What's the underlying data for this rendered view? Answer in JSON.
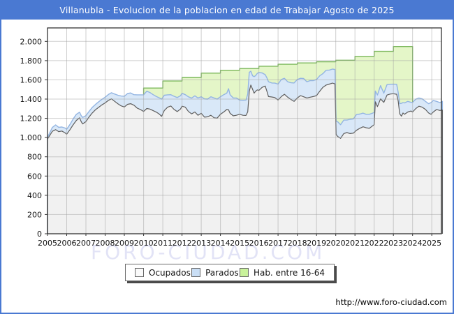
{
  "title": "Villanubla - Evolucion de la poblacion en edad de Trabajar Agosto de 2025",
  "watermark": "FORO-CIUDAD.COM",
  "footer_url": "http://www.foro-ciudad.com",
  "colors": {
    "theme_blue": "#4a79d2",
    "plot_border": "#222222",
    "grid": "rgba(160,160,160,0.5)",
    "axis_text": "#111111",
    "ocupados_line": "#5e5e5e",
    "ocupados_fill": "#f1f1f1",
    "parados_line": "#93b5e2",
    "parados_fill": "#d9e8f8",
    "hab_line": "#7cb85c",
    "hab_fill": "#e4f6c8"
  },
  "legend": [
    {
      "id": "ocupados",
      "label": "Ocupados",
      "swatch": "#fafafa"
    },
    {
      "id": "parados",
      "label": "Parados",
      "swatch": "#c9def5"
    },
    {
      "id": "hab",
      "label": "Hab. entre 16-64",
      "swatch": "#c9f29b"
    }
  ],
  "chart_data": {
    "type": "area",
    "title": "Villanubla - Evolucion de la poblacion en edad de Trabajar Agosto de 2025",
    "xlabel": "",
    "ylabel": "",
    "grid": true,
    "legend_position": "bottom",
    "xlim": [
      2005,
      2025.5
    ],
    "ylim": [
      0,
      2140
    ],
    "x_ticks": [
      2005,
      2006,
      2007,
      2008,
      2009,
      2010,
      2011,
      2012,
      2013,
      2014,
      2015,
      2016,
      2017,
      2018,
      2019,
      2020,
      2021,
      2022,
      2023,
      2024,
      2025
    ],
    "y_ticks": [
      0,
      200,
      400,
      600,
      800,
      1000,
      1200,
      1400,
      1600,
      1800,
      2000
    ],
    "y_tick_labels": [
      "0",
      "200",
      "400",
      "600",
      "800",
      "1.000",
      "1.200",
      "1.400",
      "1.600",
      "1.800",
      "2.000"
    ],
    "x": [
      2005.0,
      2005.08,
      2005.25,
      2005.42,
      2005.58,
      2005.75,
      2005.92,
      2006.0,
      2006.17,
      2006.33,
      2006.5,
      2006.67,
      2006.75,
      2006.83,
      2007.0,
      2007.17,
      2007.33,
      2007.5,
      2007.67,
      2007.83,
      2008.0,
      2008.17,
      2008.33,
      2008.5,
      2008.67,
      2008.83,
      2009.0,
      2009.17,
      2009.33,
      2009.5,
      2009.67,
      2009.83,
      2010.0,
      2010.17,
      2010.33,
      2010.5,
      2010.67,
      2010.83,
      2010.94,
      2011.08,
      2011.25,
      2011.42,
      2011.58,
      2011.75,
      2011.92,
      2012.0,
      2012.17,
      2012.33,
      2012.5,
      2012.67,
      2012.83,
      2013.0,
      2013.17,
      2013.33,
      2013.5,
      2013.67,
      2013.83,
      2014.0,
      2014.17,
      2014.33,
      2014.42,
      2014.5,
      2014.67,
      2014.83,
      2015.0,
      2015.17,
      2015.33,
      2015.42,
      2015.5,
      2015.58,
      2015.67,
      2015.75,
      2015.83,
      2015.92,
      2016.0,
      2016.17,
      2016.33,
      2016.42,
      2016.5,
      2016.67,
      2016.83,
      2017.0,
      2017.17,
      2017.33,
      2017.5,
      2017.67,
      2017.83,
      2018.0,
      2018.17,
      2018.33,
      2018.5,
      2018.67,
      2018.83,
      2019.0,
      2019.17,
      2019.33,
      2019.5,
      2019.67,
      2019.83,
      2019.96,
      2020.02,
      2020.1,
      2020.25,
      2020.42,
      2020.58,
      2020.75,
      2020.92,
      2021.08,
      2021.25,
      2021.42,
      2021.58,
      2021.75,
      2021.92,
      2022.0,
      2022.06,
      2022.17,
      2022.33,
      2022.5,
      2022.67,
      2022.83,
      2023.0,
      2023.17,
      2023.25,
      2023.33,
      2023.42,
      2023.5,
      2023.58,
      2023.75,
      2023.92,
      2024.0,
      2024.17,
      2024.33,
      2024.5,
      2024.67,
      2024.83,
      2024.96,
      2025.08,
      2025.25,
      2025.42,
      2025.55
    ],
    "series": [
      {
        "id": "ocupados",
        "name": "Ocupados",
        "kind": "area_from_zero",
        "values": [
          985,
          1010,
          1065,
          1082,
          1062,
          1068,
          1048,
          1035,
          1082,
          1132,
          1178,
          1206,
          1168,
          1142,
          1166,
          1216,
          1256,
          1290,
          1316,
          1340,
          1360,
          1386,
          1402,
          1376,
          1350,
          1330,
          1318,
          1346,
          1352,
          1336,
          1306,
          1292,
          1272,
          1302,
          1296,
          1280,
          1264,
          1242,
          1220,
          1282,
          1316,
          1328,
          1294,
          1270,
          1296,
          1326,
          1316,
          1272,
          1246,
          1266,
          1232,
          1252,
          1212,
          1216,
          1232,
          1206,
          1202,
          1242,
          1266,
          1292,
          1288,
          1252,
          1226,
          1232,
          1242,
          1232,
          1230,
          1268,
          1482,
          1546,
          1502,
          1462,
          1482,
          1496,
          1490,
          1522,
          1536,
          1480,
          1426,
          1422,
          1416,
          1390,
          1426,
          1450,
          1420,
          1396,
          1376,
          1412,
          1436,
          1424,
          1412,
          1420,
          1426,
          1436,
          1482,
          1522,
          1546,
          1556,
          1566,
          1558,
          1032,
          1012,
          992,
          1042,
          1052,
          1042,
          1046,
          1076,
          1096,
          1112,
          1102,
          1096,
          1122,
          1134,
          1372,
          1322,
          1402,
          1366,
          1442,
          1452,
          1456,
          1450,
          1380,
          1246,
          1222,
          1256,
          1242,
          1266,
          1276,
          1266,
          1302,
          1326,
          1316,
          1292,
          1256,
          1242,
          1266,
          1292,
          1282,
          1286
        ]
      },
      {
        "id": "parados",
        "name": "Parados",
        "kind": "area_stacked_on_ocupados",
        "values": [
          15,
          25,
          40,
          50,
          45,
          42,
          50,
          52,
          55,
          60,
          64,
          58,
          62,
          68,
          62,
          58,
          58,
          55,
          57,
          58,
          60,
          62,
          64,
          76,
          90,
          102,
          112,
          112,
          112,
          110,
          138,
          152,
          172,
          180,
          172,
          166,
          162,
          170,
          180,
          158,
          128,
          118,
          136,
          146,
          138,
          134,
          130,
          152,
          164,
          168,
          180,
          172,
          190,
          184,
          192,
          206,
          198,
          182,
          180,
          170,
          220,
          194,
          186,
          180,
          148,
          156,
          160,
          185,
          196,
          144,
          140,
          172,
          162,
          172,
          186,
          150,
          118,
          140,
          154,
          146,
          150,
          166,
          178,
          166,
          160,
          174,
          192,
          192,
          180,
          190,
          168,
          172,
          166,
          168,
          160,
          142,
          154,
          146,
          146,
          150,
          140,
          152,
          142,
          140,
          130,
          148,
          148,
          164,
          148,
          142,
          140,
          146,
          132,
          128,
          112,
          120,
          138,
          96,
          108,
          102,
          99,
          104,
          90,
          106,
          134,
          108,
          118,
          110,
          90,
          100,
          98,
          86,
          86,
          84,
          96,
          122,
          120,
          84,
          82,
          90
        ]
      },
      {
        "id": "hab_16_64",
        "name": "Hab. entre 16-64",
        "kind": "step_area_from_zero",
        "step_years": [
          2010,
          2011,
          2012,
          2013,
          2014,
          2015,
          2016,
          2017,
          2018,
          2019,
          2020,
          2021,
          2022,
          2023
        ],
        "step_values": [
          1515,
          1588,
          1625,
          1670,
          1700,
          1718,
          1742,
          1762,
          1776,
          1788,
          1804,
          1844,
          1896,
          1946
        ],
        "end_x": 2024.0
      }
    ]
  }
}
